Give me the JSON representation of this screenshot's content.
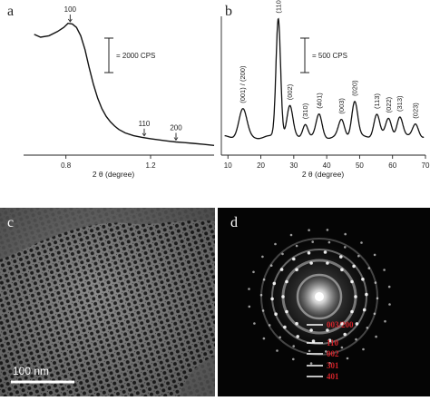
{
  "panels": {
    "a": {
      "letter": "a"
    },
    "b": {
      "letter": "b"
    },
    "c": {
      "letter": "c",
      "scale_bar": "100 nm"
    },
    "d": {
      "letter": "d",
      "ring_labels": [
        "003/200",
        "110",
        "002",
        "301",
        "401"
      ],
      "ring_label_color": "#d2232a"
    }
  },
  "chart_data": [
    {
      "type": "line",
      "panel": "a",
      "xlabel": "2 θ (degree)",
      "ylabel": "",
      "xlim": [
        0.6,
        1.5
      ],
      "ylim": [
        0,
        10
      ],
      "xticks": [
        0.8,
        1.2
      ],
      "scale_bar_label": "= 2000 CPS",
      "annotations": [
        {
          "x": 0.82,
          "text": "100"
        },
        {
          "x": 1.17,
          "text": "110"
        },
        {
          "x": 1.32,
          "text": "200"
        }
      ],
      "x": [
        0.65,
        0.68,
        0.72,
        0.76,
        0.79,
        0.81,
        0.83,
        0.85,
        0.87,
        0.89,
        0.91,
        0.93,
        0.95,
        0.97,
        0.99,
        1.01,
        1.03,
        1.05,
        1.08,
        1.12,
        1.16,
        1.2,
        1.24,
        1.28,
        1.32,
        1.36,
        1.4,
        1.45,
        1.5
      ],
      "y": [
        8.7,
        8.5,
        8.6,
        8.9,
        9.2,
        9.5,
        9.45,
        9.2,
        8.6,
        7.6,
        6.3,
        5.1,
        4.1,
        3.35,
        2.8,
        2.4,
        2.1,
        1.85,
        1.6,
        1.4,
        1.28,
        1.18,
        1.1,
        1.02,
        0.95,
        0.9,
        0.85,
        0.78,
        0.7
      ],
      "line_color": "#111111"
    },
    {
      "type": "line",
      "panel": "b",
      "xlabel": "2 θ (degree)",
      "ylabel": "",
      "xlim": [
        8,
        70
      ],
      "ylim": [
        0,
        10
      ],
      "xticks": [
        10,
        20,
        30,
        40,
        50,
        60,
        70
      ],
      "scale_bar_label": "= 500 CPS",
      "peaks": [
        {
          "x": 14.5,
          "h": 2.0,
          "w": 1.2,
          "label": "(001) / (200)"
        },
        {
          "x": 25.3,
          "h": 8.6,
          "w": 0.7,
          "label": "(110)"
        },
        {
          "x": 28.8,
          "h": 2.2,
          "w": 0.9,
          "label": "(002)"
        },
        {
          "x": 33.5,
          "h": 1.0,
          "w": 0.8,
          "label": "(310)"
        },
        {
          "x": 37.7,
          "h": 1.6,
          "w": 0.9,
          "label": "(401)"
        },
        {
          "x": 44.5,
          "h": 1.2,
          "w": 0.9,
          "label": "(003)"
        },
        {
          "x": 48.5,
          "h": 2.6,
          "w": 0.9,
          "label": "(020)"
        },
        {
          "x": 55.2,
          "h": 1.7,
          "w": 0.9,
          "label": "(113)"
        },
        {
          "x": 58.8,
          "h": 1.3,
          "w": 0.9,
          "label": "(022)"
        },
        {
          "x": 62.2,
          "h": 1.5,
          "w": 0.9,
          "label": "(313)"
        },
        {
          "x": 67.0,
          "h": 1.0,
          "w": 0.9,
          "label": "(023)"
        }
      ],
      "baseline": 1.3,
      "line_color": "#111111"
    }
  ]
}
